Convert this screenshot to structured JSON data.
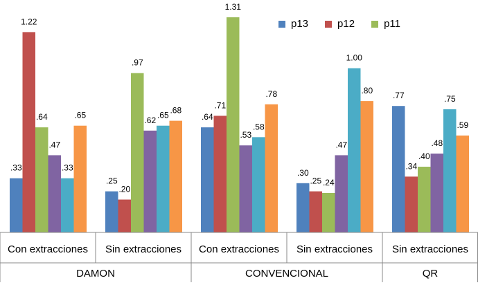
{
  "chart_data": {
    "type": "bar",
    "legend": [
      {
        "name": "p13",
        "color": "#4F81BD"
      },
      {
        "name": "p12",
        "color": "#C0504D"
      },
      {
        "name": "p11",
        "color": "#9BBB59"
      }
    ],
    "bar_colors": [
      "#4F81BD",
      "#C0504D",
      "#9BBB59",
      "#8064A2",
      "#4BACC6",
      "#F79646"
    ],
    "groups": [
      {
        "category": "Con extracciones",
        "major": "DAMON",
        "values": [
          0.33,
          1.22,
          0.64,
          0.47,
          0.33,
          0.65
        ],
        "labels": [
          ".33",
          "1.22",
          ".64",
          ".47",
          ".33",
          ".65"
        ]
      },
      {
        "category": "Sin extracciones",
        "major": "DAMON",
        "values": [
          0.25,
          0.2,
          0.97,
          0.62,
          0.65,
          0.68
        ],
        "labels": [
          ".25",
          ".20",
          ".97",
          ".62",
          ".65",
          ".68"
        ]
      },
      {
        "category": "Con extracciones",
        "major": "CONVENCIONAL",
        "values": [
          0.64,
          0.71,
          1.31,
          0.53,
          0.58,
          0.78
        ],
        "labels": [
          ".64",
          ".71",
          "1.31",
          ".53",
          ".58",
          ".78"
        ]
      },
      {
        "category": "Sin extracciones",
        "major": "CONVENCIONAL",
        "values": [
          0.3,
          0.25,
          0.24,
          0.47,
          1.0,
          0.8
        ],
        "labels": [
          ".30",
          ".25",
          ".24",
          ".47",
          "1.00",
          ".80"
        ]
      },
      {
        "category": "Sin extracciones",
        "major": "QR",
        "values": [
          0.77,
          0.34,
          0.4,
          0.48,
          0.75,
          0.59
        ],
        "labels": [
          ".77",
          ".34",
          ".40",
          ".48",
          ".75",
          ".59"
        ]
      }
    ],
    "major_categories": [
      {
        "name": "DAMON",
        "span": 2
      },
      {
        "name": "CONVENCIONAL",
        "span": 2
      },
      {
        "name": "QR",
        "span": 1
      }
    ],
    "ylim": [
      0,
      1.31
    ],
    "grid": false,
    "legend_position": "top-right"
  }
}
